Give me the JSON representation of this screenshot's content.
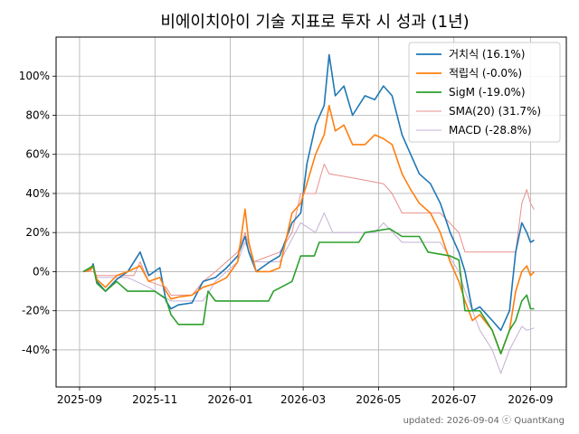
{
  "chart_data": {
    "type": "line",
    "title": "비에이치아이 기술 지표로 투자 시 성과 (1년)",
    "xlabel": "",
    "ylabel": "",
    "x_ticks": [
      "2025-09",
      "2025-11",
      "2026-01",
      "2026-03",
      "2026-05",
      "2026-07",
      "2026-09"
    ],
    "y_ticks": [
      "-40%",
      "-20%",
      "0%",
      "20%",
      "40%",
      "60%",
      "80%",
      "100%"
    ],
    "x_range": [
      "2025-08-13",
      "2026-09-30"
    ],
    "ylim": [
      -59,
      120
    ],
    "grid": true,
    "legend_position": "top-right",
    "footer": "updated: 2026-09-04 ⓒ QuantKang",
    "series": [
      {
        "name": "거치식 (16.1%)",
        "color": "#1f77b4",
        "points": [
          [
            "2025-09-04",
            0
          ],
          [
            "2025-09-10",
            1
          ],
          [
            "2025-09-12",
            4
          ],
          [
            "2025-09-15",
            -5
          ],
          [
            "2025-09-22",
            -10
          ],
          [
            "2025-10-01",
            -4
          ],
          [
            "2025-10-10",
            0
          ],
          [
            "2025-10-20",
            10
          ],
          [
            "2025-10-27",
            -2
          ],
          [
            "2025-11-05",
            2
          ],
          [
            "2025-11-10",
            -15
          ],
          [
            "2025-11-14",
            -19
          ],
          [
            "2025-11-20",
            -17
          ],
          [
            "2025-12-01",
            -16
          ],
          [
            "2025-12-10",
            -5
          ],
          [
            "2025-12-20",
            -3
          ],
          [
            "2025-12-29",
            2
          ],
          [
            "2026-01-07",
            8
          ],
          [
            "2026-01-13",
            18
          ],
          [
            "2026-01-16",
            10
          ],
          [
            "2026-01-22",
            0
          ],
          [
            "2026-02-02",
            5
          ],
          [
            "2026-02-10",
            8
          ],
          [
            "2026-02-20",
            25
          ],
          [
            "2026-02-27",
            30
          ],
          [
            "2026-03-04",
            55
          ],
          [
            "2026-03-11",
            75
          ],
          [
            "2026-03-18",
            85
          ],
          [
            "2026-03-22",
            111
          ],
          [
            "2026-03-27",
            90
          ],
          [
            "2026-04-03",
            95
          ],
          [
            "2026-04-10",
            80
          ],
          [
            "2026-04-20",
            90
          ],
          [
            "2026-04-28",
            88
          ],
          [
            "2026-05-05",
            95
          ],
          [
            "2026-05-12",
            90
          ],
          [
            "2026-05-20",
            70
          ],
          [
            "2026-05-27",
            60
          ],
          [
            "2026-06-03",
            50
          ],
          [
            "2026-06-12",
            45
          ],
          [
            "2026-06-20",
            35
          ],
          [
            "2026-06-28",
            20
          ],
          [
            "2026-07-05",
            10
          ],
          [
            "2026-07-10",
            0
          ],
          [
            "2026-07-16",
            -20
          ],
          [
            "2026-07-22",
            -18
          ],
          [
            "2026-08-01",
            -25
          ],
          [
            "2026-08-08",
            -30
          ],
          [
            "2026-08-15",
            -20
          ],
          [
            "2026-08-20",
            10
          ],
          [
            "2026-08-25",
            25
          ],
          [
            "2026-08-29",
            20
          ],
          [
            "2026-09-01",
            15
          ],
          [
            "2026-09-04",
            16.1
          ]
        ]
      },
      {
        "name": "적립식 (-0.0%)",
        "color": "#ff7f0e",
        "points": [
          [
            "2025-09-04",
            0
          ],
          [
            "2025-09-10",
            1
          ],
          [
            "2025-09-12",
            3
          ],
          [
            "2025-09-15",
            -4
          ],
          [
            "2025-09-22",
            -8
          ],
          [
            "2025-10-01",
            -2
          ],
          [
            "2025-10-10",
            0
          ],
          [
            "2025-10-20",
            3
          ],
          [
            "2025-10-27",
            -5
          ],
          [
            "2025-11-05",
            -3
          ],
          [
            "2025-11-10",
            -10
          ],
          [
            "2025-11-14",
            -14
          ],
          [
            "2025-11-20",
            -13
          ],
          [
            "2025-12-01",
            -12
          ],
          [
            "2025-12-10",
            -8
          ],
          [
            "2025-12-20",
            -6
          ],
          [
            "2025-12-29",
            -3
          ],
          [
            "2026-01-07",
            5
          ],
          [
            "2026-01-13",
            32
          ],
          [
            "2026-01-16",
            15
          ],
          [
            "2026-01-22",
            0
          ],
          [
            "2026-02-02",
            0
          ],
          [
            "2026-02-10",
            2
          ],
          [
            "2026-02-20",
            30
          ],
          [
            "2026-02-27",
            35
          ],
          [
            "2026-03-04",
            45
          ],
          [
            "2026-03-11",
            60
          ],
          [
            "2026-03-18",
            70
          ],
          [
            "2026-03-22",
            85
          ],
          [
            "2026-03-27",
            72
          ],
          [
            "2026-04-03",
            75
          ],
          [
            "2026-04-10",
            65
          ],
          [
            "2026-04-20",
            65
          ],
          [
            "2026-04-28",
            70
          ],
          [
            "2026-05-05",
            68
          ],
          [
            "2026-05-12",
            65
          ],
          [
            "2026-05-20",
            50
          ],
          [
            "2026-05-27",
            42
          ],
          [
            "2026-06-03",
            35
          ],
          [
            "2026-06-12",
            30
          ],
          [
            "2026-06-20",
            20
          ],
          [
            "2026-06-28",
            5
          ],
          [
            "2026-07-05",
            -5
          ],
          [
            "2026-07-10",
            -15
          ],
          [
            "2026-07-16",
            -25
          ],
          [
            "2026-07-22",
            -22
          ],
          [
            "2026-08-01",
            -30
          ],
          [
            "2026-08-08",
            -42
          ],
          [
            "2026-08-15",
            -30
          ],
          [
            "2026-08-20",
            -10
          ],
          [
            "2026-08-25",
            0
          ],
          [
            "2026-08-29",
            3
          ],
          [
            "2026-09-01",
            -2
          ],
          [
            "2026-09-04",
            0
          ]
        ]
      },
      {
        "name": "SigM (-19.0%)",
        "color": "#2ca02c",
        "points": [
          [
            "2025-09-04",
            0
          ],
          [
            "2025-09-12",
            3
          ],
          [
            "2025-09-15",
            -6
          ],
          [
            "2025-09-22",
            -10
          ],
          [
            "2025-10-01",
            -5
          ],
          [
            "2025-10-10",
            -10
          ],
          [
            "2025-11-01",
            -10
          ],
          [
            "2025-11-10",
            -14
          ],
          [
            "2025-11-14",
            -22
          ],
          [
            "2025-11-20",
            -27
          ],
          [
            "2025-12-10",
            -27
          ],
          [
            "2025-12-14",
            -10
          ],
          [
            "2025-12-20",
            -15
          ],
          [
            "2026-02-01",
            -15
          ],
          [
            "2026-02-05",
            -10
          ],
          [
            "2026-02-20",
            -5
          ],
          [
            "2026-02-27",
            8
          ],
          [
            "2026-03-10",
            8
          ],
          [
            "2026-03-14",
            15
          ],
          [
            "2026-04-15",
            15
          ],
          [
            "2026-04-20",
            20
          ],
          [
            "2026-05-10",
            22
          ],
          [
            "2026-05-20",
            18
          ],
          [
            "2026-06-03",
            18
          ],
          [
            "2026-06-10",
            10
          ],
          [
            "2026-06-28",
            8
          ],
          [
            "2026-07-05",
            6
          ],
          [
            "2026-07-10",
            -20
          ],
          [
            "2026-07-22",
            -20
          ],
          [
            "2026-08-01",
            -30
          ],
          [
            "2026-08-08",
            -42
          ],
          [
            "2026-08-15",
            -30
          ],
          [
            "2026-08-20",
            -25
          ],
          [
            "2026-08-25",
            -15
          ],
          [
            "2026-08-29",
            -12
          ],
          [
            "2026-09-01",
            -19
          ],
          [
            "2026-09-04",
            -19
          ]
        ]
      },
      {
        "name": "SMA(20) (31.7%)",
        "color": "#e8908c",
        "points": [
          [
            "2025-09-04",
            0
          ],
          [
            "2025-09-12",
            0
          ],
          [
            "2025-09-15",
            -2
          ],
          [
            "2025-10-15",
            -2
          ],
          [
            "2025-10-20",
            5
          ],
          [
            "2025-10-27",
            -5
          ],
          [
            "2025-11-10",
            -8
          ],
          [
            "2025-11-14",
            -12
          ],
          [
            "2025-12-01",
            -12
          ],
          [
            "2025-12-10",
            -5
          ],
          [
            "2025-12-20",
            0
          ],
          [
            "2026-01-07",
            10
          ],
          [
            "2026-01-13",
            20
          ],
          [
            "2026-01-20",
            5
          ],
          [
            "2026-02-10",
            10
          ],
          [
            "2026-02-20",
            20
          ],
          [
            "2026-02-27",
            40
          ],
          [
            "2026-03-11",
            40
          ],
          [
            "2026-03-18",
            55
          ],
          [
            "2026-03-22",
            50
          ],
          [
            "2026-04-10",
            48
          ],
          [
            "2026-05-05",
            45
          ],
          [
            "2026-05-12",
            40
          ],
          [
            "2026-05-20",
            30
          ],
          [
            "2026-06-12",
            30
          ],
          [
            "2026-06-20",
            30
          ],
          [
            "2026-07-05",
            20
          ],
          [
            "2026-07-10",
            10
          ],
          [
            "2026-08-20",
            10
          ],
          [
            "2026-08-25",
            35
          ],
          [
            "2026-08-29",
            42
          ],
          [
            "2026-09-01",
            35
          ],
          [
            "2026-09-04",
            31.7
          ]
        ]
      },
      {
        "name": "MACD (-28.8%)",
        "color": "#c5b0d5",
        "points": [
          [
            "2025-09-04",
            0
          ],
          [
            "2025-09-12",
            2
          ],
          [
            "2025-09-15",
            -3
          ],
          [
            "2025-10-10",
            -3
          ],
          [
            "2025-10-27",
            -8
          ],
          [
            "2025-11-14",
            -15
          ],
          [
            "2025-12-10",
            -15
          ],
          [
            "2025-12-20",
            -5
          ],
          [
            "2026-01-07",
            5
          ],
          [
            "2026-01-13",
            15
          ],
          [
            "2026-01-20",
            5
          ],
          [
            "2026-02-10",
            5
          ],
          [
            "2026-02-27",
            25
          ],
          [
            "2026-03-11",
            20
          ],
          [
            "2026-03-18",
            30
          ],
          [
            "2026-03-25",
            20
          ],
          [
            "2026-04-28",
            20
          ],
          [
            "2026-05-05",
            25
          ],
          [
            "2026-05-20",
            15
          ],
          [
            "2026-06-20",
            15
          ],
          [
            "2026-07-05",
            0
          ],
          [
            "2026-07-10",
            -10
          ],
          [
            "2026-07-22",
            -30
          ],
          [
            "2026-08-01",
            -40
          ],
          [
            "2026-08-08",
            -52
          ],
          [
            "2026-08-15",
            -40
          ],
          [
            "2026-08-25",
            -28
          ],
          [
            "2026-08-29",
            -30
          ],
          [
            "2026-09-04",
            -28.8
          ]
        ]
      }
    ]
  }
}
